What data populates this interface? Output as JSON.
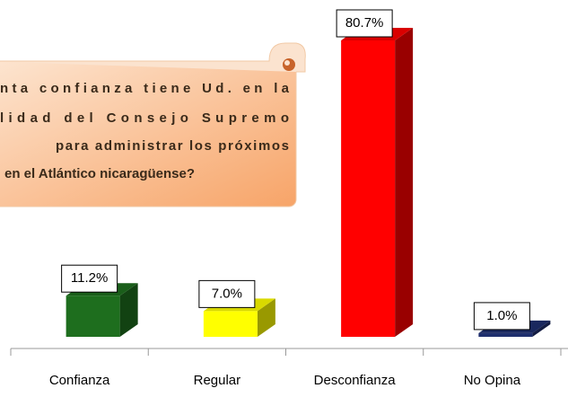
{
  "chart_data": {
    "type": "bar3d",
    "categories": [
      "Confianza",
      "Regular",
      "Desconfianza",
      "No Opina"
    ],
    "values": [
      11.2,
      7.0,
      80.7,
      1.0
    ],
    "value_labels": [
      "11.2%",
      "7.0%",
      "80.7%",
      "1.0%"
    ],
    "colors": [
      "#1e6e1e",
      "#ffff00",
      "#ff0000",
      "#1f2f6e"
    ],
    "annotation": [
      "nta confianza tiene Ud. en la",
      "lidad del Consejo Supremo",
      "para administrar los próximos",
      "en el Atlántico nicaragüense?"
    ]
  }
}
